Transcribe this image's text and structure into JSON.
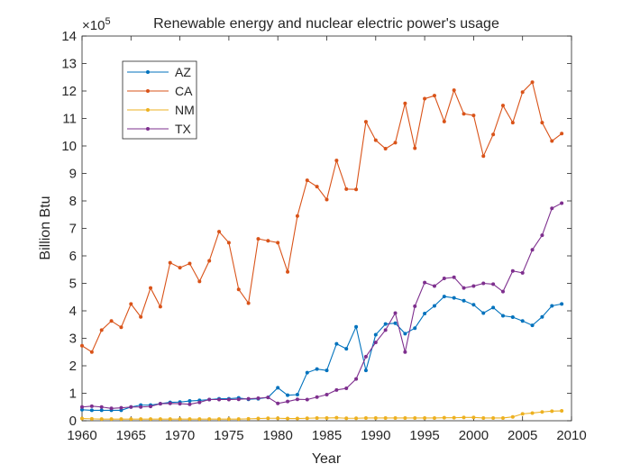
{
  "chart_data": {
    "type": "line",
    "title": "Renewable energy and nuclear electric power's usage",
    "xlabel": "Year",
    "ylabel": "Billion Btu",
    "exponent_label": "×10",
    "exponent_power": "5",
    "xlim": [
      1960,
      2010
    ],
    "ylim": [
      0,
      1400000
    ],
    "xticks": [
      1960,
      1965,
      1970,
      1975,
      1980,
      1985,
      1990,
      1995,
      2000,
      2005,
      2010
    ],
    "yticks": [
      0,
      100000,
      200000,
      300000,
      400000,
      500000,
      600000,
      700000,
      800000,
      900000,
      1000000,
      1100000,
      1200000,
      1300000,
      1400000
    ],
    "ytick_labels": [
      "0",
      "1",
      "2",
      "3",
      "4",
      "5",
      "6",
      "7",
      "8",
      "9",
      "10",
      "11",
      "12",
      "13",
      "14"
    ],
    "xtick_labels": [
      "1960",
      "1965",
      "1970",
      "1975",
      "1980",
      "1985",
      "1990",
      "1995",
      "2000",
      "2005",
      "2010"
    ],
    "grid": false,
    "legend_position": "top-left",
    "x": [
      1960,
      1961,
      1962,
      1963,
      1964,
      1965,
      1966,
      1967,
      1968,
      1969,
      1970,
      1971,
      1972,
      1973,
      1974,
      1975,
      1976,
      1977,
      1978,
      1979,
      1980,
      1981,
      1982,
      1983,
      1984,
      1985,
      1986,
      1987,
      1988,
      1989,
      1990,
      1991,
      1992,
      1993,
      1994,
      1995,
      1996,
      1997,
      1998,
      1999,
      2000,
      2001,
      2002,
      2003,
      2004,
      2005,
      2006,
      2007,
      2008,
      2009
    ],
    "series": [
      {
        "name": "AZ",
        "color": "#0072BD",
        "values": [
          40000,
          38000,
          38000,
          38000,
          38000,
          50000,
          57000,
          57000,
          62000,
          67000,
          68000,
          72000,
          74000,
          77000,
          80000,
          80000,
          83000,
          78000,
          80000,
          85000,
          120000,
          93000,
          95000,
          175000,
          188000,
          183000,
          280000,
          262000,
          342000,
          183000,
          313000,
          352000,
          355000,
          317000,
          337000,
          390000,
          418000,
          452000,
          447000,
          437000,
          422000,
          392000,
          412000,
          382000,
          377000,
          363000,
          347000,
          378000,
          418000,
          425000
        ]
      },
      {
        "name": "CA",
        "color": "#D95319",
        "values": [
          273000,
          250000,
          330000,
          363000,
          340000,
          425000,
          378000,
          483000,
          415000,
          575000,
          557000,
          572000,
          507000,
          582000,
          688000,
          648000,
          478000,
          428000,
          662000,
          655000,
          648000,
          542000,
          745000,
          875000,
          852000,
          805000,
          947000,
          843000,
          842000,
          1088000,
          1021000,
          990000,
          1012000,
          1155000,
          992000,
          1172000,
          1183000,
          1089000,
          1203000,
          1117000,
          1111000,
          963000,
          1042000,
          1147000,
          1085000,
          1196000,
          1232000,
          1085000,
          1018000,
          1045000
        ]
      },
      {
        "name": "NM",
        "color": "#EDB120",
        "values": [
          8000,
          7000,
          6000,
          6000,
          6000,
          6000,
          6000,
          6000,
          6000,
          6000,
          6000,
          6000,
          6000,
          6000,
          6000,
          6000,
          6000,
          7000,
          8000,
          9000,
          9000,
          8000,
          8000,
          9000,
          10000,
          10000,
          11000,
          9000,
          9000,
          10000,
          10000,
          10000,
          10000,
          10000,
          10000,
          10000,
          10000,
          11000,
          11000,
          12000,
          12000,
          10000,
          10000,
          10000,
          14000,
          25000,
          28000,
          32000,
          35000,
          36000
        ]
      },
      {
        "name": "TX",
        "color": "#7E2F8E",
        "values": [
          50000,
          53000,
          50000,
          45000,
          47000,
          50000,
          50000,
          52000,
          62000,
          63000,
          62000,
          60000,
          67000,
          77000,
          77000,
          77000,
          78000,
          80000,
          82000,
          85000,
          63000,
          70000,
          78000,
          77000,
          86000,
          95000,
          112000,
          118000,
          152000,
          233000,
          285000,
          330000,
          392000,
          250000,
          417000,
          503000,
          490000,
          518000,
          522000,
          483000,
          490000,
          500000,
          497000,
          470000,
          545000,
          538000,
          622000,
          675000,
          773000,
          792000
        ]
      }
    ]
  }
}
